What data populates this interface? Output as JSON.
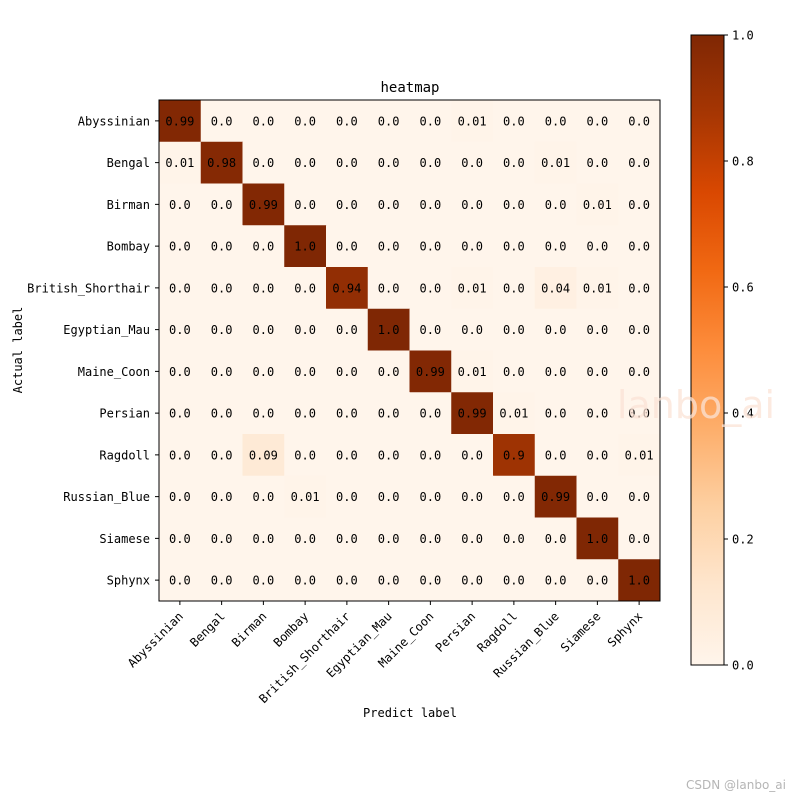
{
  "chart_data": {
    "type": "heatmap",
    "title": "heatmap",
    "xlabel": "Predict label",
    "ylabel": "Actual label",
    "x_categories": [
      "Abyssinian",
      "Bengal",
      "Birman",
      "Bombay",
      "British_Shorthair",
      "Egyptian_Mau",
      "Maine_Coon",
      "Persian",
      "Ragdoll",
      "Russian_Blue",
      "Siamese",
      "Sphynx"
    ],
    "y_categories": [
      "Abyssinian",
      "Bengal",
      "Birman",
      "Bombay",
      "British_Shorthair",
      "Egyptian_Mau",
      "Maine_Coon",
      "Persian",
      "Ragdoll",
      "Russian_Blue",
      "Siamese",
      "Sphynx"
    ],
    "values": [
      [
        0.99,
        0.0,
        0.0,
        0.0,
        0.0,
        0.0,
        0.0,
        0.01,
        0.0,
        0.0,
        0.0,
        0.0
      ],
      [
        0.01,
        0.98,
        0.0,
        0.0,
        0.0,
        0.0,
        0.0,
        0.0,
        0.0,
        0.01,
        0.0,
        0.0
      ],
      [
        0.0,
        0.0,
        0.99,
        0.0,
        0.0,
        0.0,
        0.0,
        0.0,
        0.0,
        0.0,
        0.01,
        0.0
      ],
      [
        0.0,
        0.0,
        0.0,
        1.0,
        0.0,
        0.0,
        0.0,
        0.0,
        0.0,
        0.0,
        0.0,
        0.0
      ],
      [
        0.0,
        0.0,
        0.0,
        0.0,
        0.94,
        0.0,
        0.0,
        0.01,
        0.0,
        0.04,
        0.01,
        0.0
      ],
      [
        0.0,
        0.0,
        0.0,
        0.0,
        0.0,
        1.0,
        0.0,
        0.0,
        0.0,
        0.0,
        0.0,
        0.0
      ],
      [
        0.0,
        0.0,
        0.0,
        0.0,
        0.0,
        0.0,
        0.99,
        0.01,
        0.0,
        0.0,
        0.0,
        0.0
      ],
      [
        0.0,
        0.0,
        0.0,
        0.0,
        0.0,
        0.0,
        0.0,
        0.99,
        0.01,
        0.0,
        0.0,
        0.0
      ],
      [
        0.0,
        0.0,
        0.09,
        0.0,
        0.0,
        0.0,
        0.0,
        0.0,
        0.9,
        0.0,
        0.0,
        0.01
      ],
      [
        0.0,
        0.0,
        0.0,
        0.01,
        0.0,
        0.0,
        0.0,
        0.0,
        0.0,
        0.99,
        0.0,
        0.0
      ],
      [
        0.0,
        0.0,
        0.0,
        0.0,
        0.0,
        0.0,
        0.0,
        0.0,
        0.0,
        0.0,
        1.0,
        0.0
      ],
      [
        0.0,
        0.0,
        0.0,
        0.0,
        0.0,
        0.0,
        0.0,
        0.0,
        0.0,
        0.0,
        0.0,
        1.0
      ]
    ],
    "labels": [
      [
        "0.99",
        "0.0",
        "0.0",
        "0.0",
        "0.0",
        "0.0",
        "0.0",
        "0.01",
        "0.0",
        "0.0",
        "0.0",
        "0.0"
      ],
      [
        "0.01",
        "0.98",
        "0.0",
        "0.0",
        "0.0",
        "0.0",
        "0.0",
        "0.0",
        "0.0",
        "0.01",
        "0.0",
        "0.0"
      ],
      [
        "0.0",
        "0.0",
        "0.99",
        "0.0",
        "0.0",
        "0.0",
        "0.0",
        "0.0",
        "0.0",
        "0.0",
        "0.01",
        "0.0"
      ],
      [
        "0.0",
        "0.0",
        "0.0",
        "1.0",
        "0.0",
        "0.0",
        "0.0",
        "0.0",
        "0.0",
        "0.0",
        "0.0",
        "0.0"
      ],
      [
        "0.0",
        "0.0",
        "0.0",
        "0.0",
        "0.94",
        "0.0",
        "0.0",
        "0.01",
        "0.0",
        "0.04",
        "0.01",
        "0.0"
      ],
      [
        "0.0",
        "0.0",
        "0.0",
        "0.0",
        "0.0",
        "1.0",
        "0.0",
        "0.0",
        "0.0",
        "0.0",
        "0.0",
        "0.0"
      ],
      [
        "0.0",
        "0.0",
        "0.0",
        "0.0",
        "0.0",
        "0.0",
        "0.99",
        "0.01",
        "0.0",
        "0.0",
        "0.0",
        "0.0"
      ],
      [
        "0.0",
        "0.0",
        "0.0",
        "0.0",
        "0.0",
        "0.0",
        "0.0",
        "0.99",
        "0.01",
        "0.0",
        "0.0",
        "0.0"
      ],
      [
        "0.0",
        "0.0",
        "0.09",
        "0.0",
        "0.0",
        "0.0",
        "0.0",
        "0.0",
        "0.9",
        "0.0",
        "0.0",
        "0.01"
      ],
      [
        "0.0",
        "0.0",
        "0.0",
        "0.01",
        "0.0",
        "0.0",
        "0.0",
        "0.0",
        "0.0",
        "0.99",
        "0.0",
        "0.0"
      ],
      [
        "0.0",
        "0.0",
        "0.0",
        "0.0",
        "0.0",
        "0.0",
        "0.0",
        "0.0",
        "0.0",
        "0.0",
        "1.0",
        "0.0"
      ],
      [
        "0.0",
        "0.0",
        "0.0",
        "0.0",
        "0.0",
        "0.0",
        "0.0",
        "0.0",
        "0.0",
        "0.0",
        "0.0",
        "1.0"
      ]
    ],
    "colorbar": {
      "range": [
        0.0,
        1.0
      ],
      "ticks": [
        "0.0",
        "0.2",
        "0.4",
        "0.6",
        "0.8",
        "1.0"
      ],
      "colormap": [
        "#fff5eb",
        "#fee6ce",
        "#fdd0a2",
        "#fdae6b",
        "#fd8d3c",
        "#f16913",
        "#d94801",
        "#a63603",
        "#7f2704"
      ]
    },
    "colormap_name": "OrRd",
    "grid": false,
    "legend": "none"
  },
  "watermark": "lanbo_ai",
  "credit": "CSDN @lanbo_ai"
}
